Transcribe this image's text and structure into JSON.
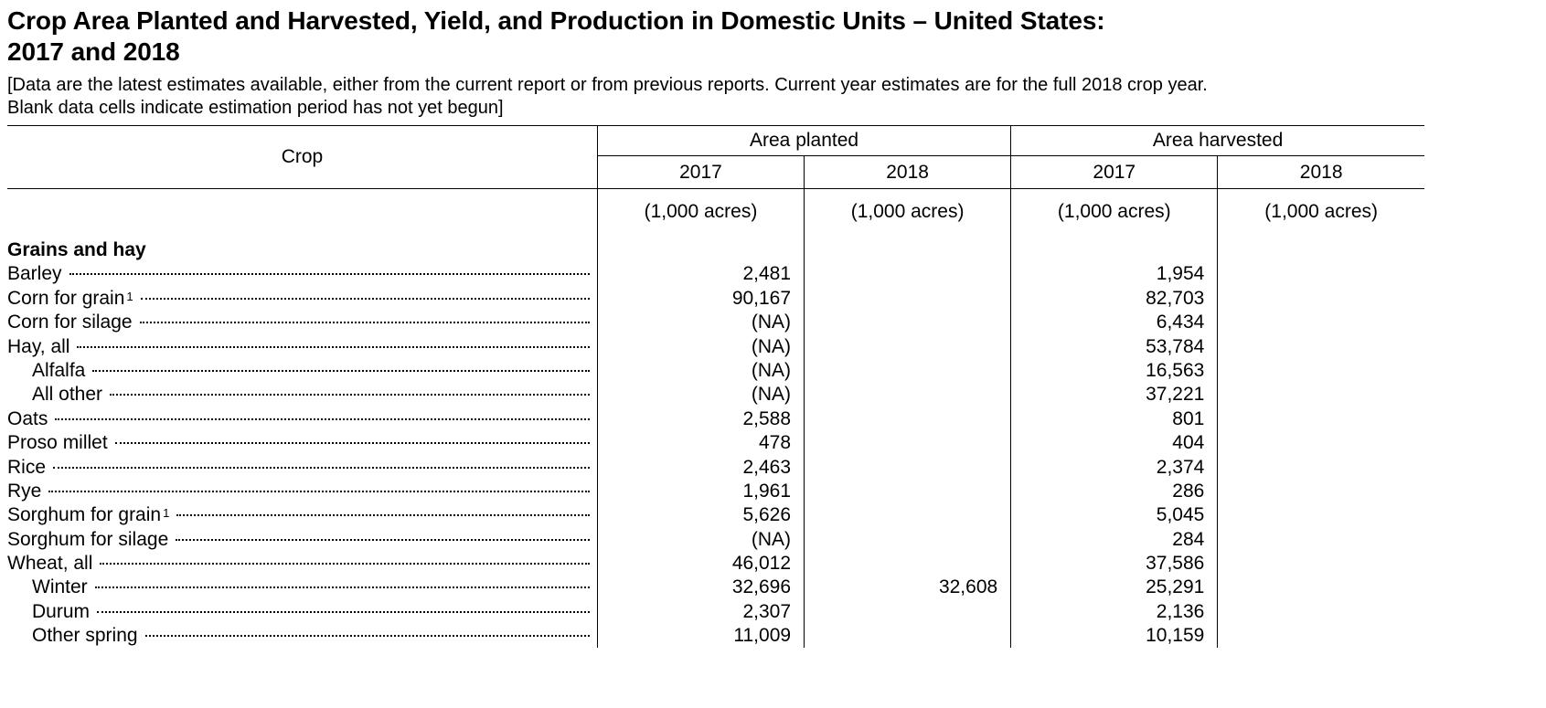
{
  "document": {
    "title_line1": "Crop Area Planted and Harvested, Yield, and Production in Domestic Units – United States:",
    "title_line2": "2017 and 2018",
    "note_line1": "[Data are the latest estimates available, either from the current report or from previous reports. Current year estimates are for the full 2018 crop year.",
    "note_line2": "Blank data cells indicate estimation period has not yet begun]"
  },
  "table": {
    "crop_header": "Crop",
    "groups": [
      {
        "label": "Area planted",
        "years": [
          "2017",
          "2018"
        ]
      },
      {
        "label": "Area harvested",
        "years": [
          "2017",
          "2018"
        ]
      }
    ],
    "units": [
      "(1,000 acres)",
      "(1,000 acres)",
      "(1,000 acres)",
      "(1,000 acres)"
    ],
    "section_title": "Grains and hay",
    "rows": [
      {
        "name": "Barley",
        "sup": "",
        "values": [
          "2,481",
          "",
          "1,954",
          ""
        ]
      },
      {
        "name": "Corn for grain",
        "sup": "1",
        "values": [
          "90,167",
          "",
          "82,703",
          ""
        ]
      },
      {
        "name": "Corn for silage",
        "sup": "",
        "values": [
          "(NA)",
          "",
          "6,434",
          ""
        ]
      },
      {
        "name": "Hay, all",
        "sup": "",
        "values": [
          "(NA)",
          "",
          "53,784",
          ""
        ]
      },
      {
        "name": "Alfalfa",
        "sup": "",
        "values": [
          "(NA)",
          "",
          "16,563",
          ""
        ]
      },
      {
        "name": "All other",
        "sup": "",
        "values": [
          "(NA)",
          "",
          "37,221",
          ""
        ]
      },
      {
        "name": "Oats",
        "sup": "",
        "values": [
          "2,588",
          "",
          "801",
          ""
        ]
      },
      {
        "name": "Proso millet",
        "sup": "",
        "values": [
          "478",
          "",
          "404",
          ""
        ]
      },
      {
        "name": "Rice",
        "sup": "",
        "values": [
          "2,463",
          "",
          "2,374",
          ""
        ]
      },
      {
        "name": "Rye",
        "sup": "",
        "values": [
          "1,961",
          "",
          "286",
          ""
        ]
      },
      {
        "name": "Sorghum for grain",
        "sup": "1",
        "values": [
          "5,626",
          "",
          "5,045",
          ""
        ]
      },
      {
        "name": "Sorghum for silage",
        "sup": "",
        "values": [
          "(NA)",
          "",
          "284",
          ""
        ]
      },
      {
        "name": "Wheat, all",
        "sup": "",
        "values": [
          "46,012",
          "",
          "37,586",
          ""
        ]
      },
      {
        "name": "Winter",
        "sup": "",
        "values": [
          "32,696",
          "32,608",
          "25,291",
          ""
        ]
      },
      {
        "name": "Durum",
        "sup": "",
        "values": [
          "2,307",
          "",
          "2,136",
          ""
        ]
      },
      {
        "name": "Other spring",
        "sup": "",
        "values": [
          "11,009",
          "",
          "10,159",
          ""
        ]
      }
    ]
  }
}
